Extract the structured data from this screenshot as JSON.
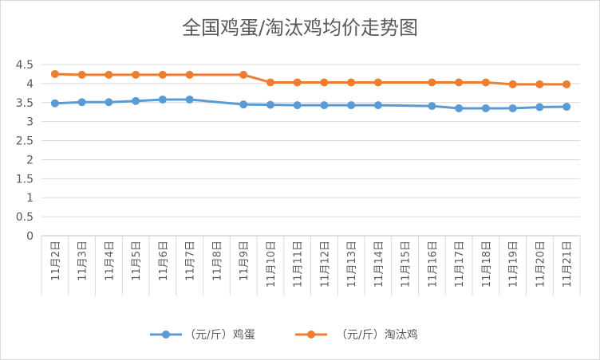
{
  "chart_data": {
    "type": "line",
    "title": "全国鸡蛋/淘汰鸡均价走势图",
    "categories": [
      "11月2日",
      "11月3日",
      "11月4日",
      "11月5日",
      "11月6日",
      "11月7日",
      "11月8日",
      "11月9日",
      "11月10日",
      "11月11日",
      "11月12日",
      "11月13日",
      "11月14日",
      "11月15日",
      "11月16日",
      "11月17日",
      "11月18日",
      "11月19日",
      "11月20日",
      "11月21日"
    ],
    "series": [
      {
        "name": "（元/斤）鸡蛋",
        "color": "#5b9bd5",
        "values": [
          3.48,
          3.51,
          3.51,
          3.54,
          3.58,
          3.58,
          null,
          3.45,
          3.44,
          3.43,
          3.43,
          3.43,
          3.43,
          null,
          3.41,
          3.35,
          3.35,
          3.35,
          3.38,
          3.39
        ]
      },
      {
        "name": "（元/斤）淘汰鸡",
        "color": "#ed7d31",
        "values": [
          4.25,
          4.23,
          4.23,
          4.23,
          4.23,
          4.23,
          null,
          4.23,
          4.03,
          4.03,
          4.03,
          4.03,
          4.03,
          null,
          4.03,
          4.03,
          4.03,
          3.98,
          3.98,
          3.98
        ]
      }
    ],
    "yticks": [
      "0",
      "0.5",
      "1",
      "1.5",
      "2",
      "2.5",
      "3",
      "3.5",
      "4",
      "4.5"
    ],
    "ylim": [
      0,
      4.5
    ],
    "grid": true,
    "legend": "bottom"
  }
}
